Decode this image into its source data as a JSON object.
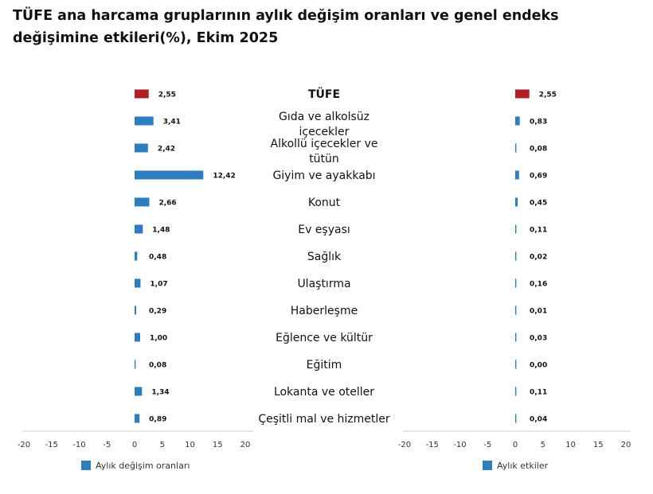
{
  "title": "TÜFE ana harcama gruplarının aylık değişim oranları ve genel endeks değişimine etkileri(%), Ekim 2025",
  "colors": {
    "highlight": "#b01f24",
    "bar": "#2e7ebf",
    "axis": "#cccccc"
  },
  "chart_data": {
    "type": "bar",
    "orientation": "horizontal",
    "categories": [
      "TÜFE",
      "Gıda ve alkolsüz içecekler",
      "Alkollü içecekler ve tütün",
      "Giyim ve ayakkabı",
      "Konut",
      "Ev eşyası",
      "Sağlık",
      "Ulaştırma",
      "Haberleşme",
      "Eğlence ve kültür",
      "Eğitim",
      "Lokanta ve oteller",
      "Çeşitli mal ve hizmetler"
    ],
    "category_lines": [
      [
        "TÜFE"
      ],
      [
        "Gıda ve alkolsüz",
        "içecekler"
      ],
      [
        "Alkollü içecekler ve",
        "tütün"
      ],
      [
        "Giyim ve ayakkabı"
      ],
      [
        "Konut"
      ],
      [
        "Ev eşyası"
      ],
      [
        "Sağlık"
      ],
      [
        "Ulaştırma"
      ],
      [
        "Haberleşme"
      ],
      [
        "Eğlence ve kültür"
      ],
      [
        "Eğitim"
      ],
      [
        "Lokanta ve oteller"
      ],
      [
        "Çeşitli mal ve hizmetler"
      ]
    ],
    "series": [
      {
        "name": "Aylık değişim oranları",
        "values": [
          2.55,
          3.41,
          2.42,
          12.42,
          2.66,
          1.48,
          0.48,
          1.07,
          0.29,
          1.0,
          0.08,
          1.34,
          0.89
        ],
        "labels": [
          "2,55",
          "3,41",
          "2,42",
          "12,42",
          "2,66",
          "1,48",
          "0,48",
          "1,07",
          "0,29",
          "1,00",
          "0,08",
          "1,34",
          "0,89"
        ]
      },
      {
        "name": "Aylık etkiler",
        "values": [
          2.55,
          0.83,
          0.08,
          0.69,
          0.45,
          0.11,
          0.02,
          0.16,
          0.01,
          0.03,
          0.0,
          0.11,
          0.04
        ],
        "labels": [
          "2,55",
          "0,83",
          "0,08",
          "0,69",
          "0,45",
          "0,11",
          "0,02",
          "0,16",
          "0,01",
          "0,03",
          "0,00",
          "0,11",
          "0,04"
        ]
      }
    ],
    "xlim": [
      -20,
      20
    ],
    "xticks": [
      -20,
      -15,
      -10,
      -5,
      0,
      5,
      10,
      15,
      20
    ],
    "xtick_labels": [
      "-20",
      "-15",
      "-10",
      "-5",
      "0",
      "5",
      "10",
      "15",
      "20"
    ],
    "highlight_category": "TÜFE",
    "legend_position": "bottom-left"
  }
}
